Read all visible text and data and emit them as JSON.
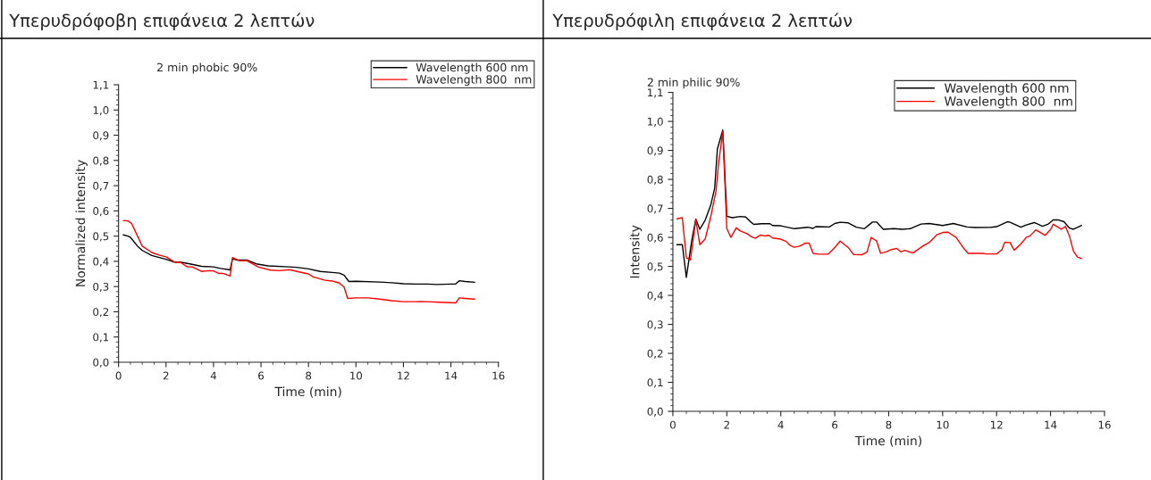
{
  "chart_data": [
    {
      "type": "line",
      "title": "Υπερυδρόφοβη επιφάνεια 2 λεπτών",
      "annotations": [
        "2 min phobic 90%"
      ],
      "xlabel": "Time (min)",
      "ylabel": "Normalized intensity",
      "xlim": [
        0,
        16
      ],
      "xticks": [
        0,
        2,
        4,
        6,
        8,
        10,
        12,
        14,
        16
      ],
      "ylim": [
        0,
        1.1
      ],
      "yticks": [
        {
          "value": 0,
          "label": "0,0"
        },
        {
          "value": 0.1,
          "label": "0,1"
        },
        {
          "value": 0.2,
          "label": "0,2"
        },
        {
          "value": 0.3,
          "label": "0,3"
        },
        {
          "value": 0.4,
          "label": "0,4"
        },
        {
          "value": 0.5,
          "label": "0,5"
        },
        {
          "value": 0.6,
          "label": "0,6"
        },
        {
          "value": 0.7,
          "label": "0,7"
        },
        {
          "value": 0.8,
          "label": "0,8"
        },
        {
          "value": 0.9,
          "label": "0,9"
        },
        {
          "value": 1.0,
          "label": "1,0"
        },
        {
          "value": 1.1,
          "label": "1,1"
        }
      ],
      "grid": false,
      "legend": "top right",
      "line_style": "solid",
      "marker": "none",
      "series": [
        {
          "name": "Wavelength 600 nm",
          "color": "#000000",
          "x": [
            0.2,
            0.4,
            0.5,
            0.8,
            1.0,
            1.4,
            2.0,
            2.3,
            2.6,
            3.0,
            3.5,
            4.0,
            4.3,
            4.7,
            4.8,
            5.0,
            5.4,
            5.8,
            6.3,
            7.0,
            7.5,
            8.0,
            8.5,
            9.0,
            9.3,
            9.5,
            9.7,
            10.0,
            11.0,
            11.5,
            12.0,
            12.5,
            13.0,
            13.4,
            14.0,
            14.2,
            14.35,
            14.6,
            15.0
          ],
          "values": [
            0.505,
            0.5,
            0.495,
            0.46,
            0.443,
            0.423,
            0.408,
            0.398,
            0.397,
            0.39,
            0.38,
            0.378,
            0.372,
            0.366,
            0.41,
            0.405,
            0.405,
            0.39,
            0.382,
            0.379,
            0.376,
            0.37,
            0.36,
            0.356,
            0.353,
            0.345,
            0.32,
            0.321,
            0.318,
            0.315,
            0.311,
            0.31,
            0.31,
            0.308,
            0.31,
            0.31,
            0.323,
            0.32,
            0.317
          ]
        },
        {
          "name": "Wavelength 800  nm",
          "color": "#ff0000",
          "x": [
            0.2,
            0.4,
            0.55,
            0.8,
            1.0,
            1.4,
            1.7,
            2.0,
            2.4,
            2.6,
            2.9,
            3.1,
            3.5,
            3.8,
            4.0,
            4.2,
            4.4,
            4.7,
            4.8,
            5.1,
            5.4,
            5.9,
            6.4,
            6.8,
            7.2,
            7.6,
            8.0,
            8.2,
            8.7,
            9.0,
            9.3,
            9.5,
            9.65,
            10.0,
            10.5,
            11.0,
            11.5,
            12.0,
            12.5,
            12.7,
            13.0,
            13.5,
            14.0,
            14.2,
            14.35,
            14.6,
            15.0
          ],
          "values": [
            0.562,
            0.56,
            0.55,
            0.5,
            0.46,
            0.435,
            0.425,
            0.418,
            0.395,
            0.396,
            0.378,
            0.378,
            0.36,
            0.363,
            0.362,
            0.353,
            0.352,
            0.342,
            0.415,
            0.402,
            0.403,
            0.377,
            0.365,
            0.363,
            0.367,
            0.358,
            0.35,
            0.338,
            0.325,
            0.322,
            0.314,
            0.298,
            0.253,
            0.255,
            0.255,
            0.25,
            0.244,
            0.24,
            0.24,
            0.241,
            0.24,
            0.238,
            0.236,
            0.235,
            0.255,
            0.253,
            0.25
          ]
        }
      ]
    },
    {
      "type": "line",
      "title": "Υπερυδρόφιλη επιφάνεια 2 λεπτών",
      "annotations": [
        "2 min philic 90%"
      ],
      "xlabel": "Time (min)",
      "ylabel": "Intensity",
      "xlim": [
        0,
        16
      ],
      "xticks": [
        0,
        2,
        4,
        6,
        8,
        10,
        12,
        14,
        16
      ],
      "ylim": [
        0,
        1.1
      ],
      "yticks": [
        {
          "value": 0,
          "label": "0,0"
        },
        {
          "value": 0.1,
          "label": "0,1"
        },
        {
          "value": 0.2,
          "label": "0,2"
        },
        {
          "value": 0.3,
          "label": "0,3"
        },
        {
          "value": 0.4,
          "label": "0,4"
        },
        {
          "value": 0.5,
          "label": "0,5"
        },
        {
          "value": 0.6,
          "label": "0,6"
        },
        {
          "value": 0.7,
          "label": "0,7"
        },
        {
          "value": 0.8,
          "label": "0,8"
        },
        {
          "value": 0.9,
          "label": "0,9"
        },
        {
          "value": 1.0,
          "label": "1,0"
        },
        {
          "value": 1.1,
          "label": "1,1"
        }
      ],
      "grid": false,
      "legend": "top right",
      "line_style": "solid",
      "marker": "none",
      "series": [
        {
          "name": "Wavelength 600 nm",
          "color": "#000000",
          "x": [
            0.15,
            0.35,
            0.5,
            0.7,
            0.85,
            1.0,
            1.2,
            1.4,
            1.55,
            1.65,
            1.85,
            2.0,
            2.2,
            2.5,
            2.7,
            2.9,
            3.0,
            3.3,
            3.6,
            3.7,
            4.0,
            4.5,
            5.0,
            5.2,
            5.3,
            5.8,
            6.0,
            6.2,
            6.5,
            6.8,
            7.1,
            7.4,
            7.55,
            7.8,
            8.2,
            8.5,
            8.8,
            9.2,
            9.5,
            10.0,
            10.4,
            10.9,
            11.2,
            11.8,
            12.0,
            12.4,
            12.5,
            12.9,
            13.1,
            13.4,
            13.7,
            13.9,
            14.1,
            14.3,
            14.5,
            14.7,
            14.85,
            15.15
          ],
          "values": [
            0.575,
            0.575,
            0.462,
            0.59,
            0.663,
            0.628,
            0.66,
            0.71,
            0.77,
            0.905,
            0.97,
            0.673,
            0.668,
            0.672,
            0.67,
            0.652,
            0.645,
            0.647,
            0.647,
            0.641,
            0.64,
            0.63,
            0.635,
            0.631,
            0.637,
            0.636,
            0.648,
            0.652,
            0.65,
            0.635,
            0.63,
            0.653,
            0.653,
            0.628,
            0.63,
            0.628,
            0.63,
            0.646,
            0.648,
            0.641,
            0.648,
            0.636,
            0.634,
            0.635,
            0.637,
            0.654,
            0.652,
            0.635,
            0.643,
            0.651,
            0.638,
            0.645,
            0.66,
            0.66,
            0.654,
            0.632,
            0.628,
            0.641
          ]
        },
        {
          "name": "Wavelength 800  nm",
          "color": "#ff0000",
          "x": [
            0.15,
            0.35,
            0.5,
            0.65,
            0.85,
            1.0,
            1.2,
            1.4,
            1.6,
            1.7,
            1.85,
            2.0,
            2.15,
            2.35,
            2.5,
            2.75,
            2.9,
            3.05,
            3.25,
            3.4,
            3.55,
            3.7,
            4.0,
            4.2,
            4.35,
            4.5,
            4.7,
            4.9,
            5.05,
            5.2,
            5.4,
            5.75,
            6.0,
            6.2,
            6.5,
            6.7,
            7.0,
            7.2,
            7.35,
            7.55,
            7.7,
            7.9,
            8.1,
            8.3,
            8.45,
            8.6,
            8.9,
            9.0,
            9.3,
            9.5,
            9.8,
            10.0,
            10.2,
            10.5,
            10.8,
            10.95,
            11.5,
            11.6,
            12.0,
            12.2,
            12.3,
            12.5,
            12.65,
            12.9,
            13.1,
            13.25,
            13.45,
            13.6,
            13.8,
            14.0,
            14.1,
            14.4,
            14.55,
            14.7,
            14.85,
            15.0,
            15.15
          ],
          "values": [
            0.664,
            0.668,
            0.53,
            0.522,
            0.66,
            0.575,
            0.595,
            0.67,
            0.76,
            0.86,
            0.965,
            0.63,
            0.6,
            0.633,
            0.622,
            0.613,
            0.603,
            0.597,
            0.608,
            0.605,
            0.607,
            0.598,
            0.594,
            0.586,
            0.572,
            0.566,
            0.57,
            0.58,
            0.58,
            0.545,
            0.542,
            0.542,
            0.565,
            0.587,
            0.565,
            0.541,
            0.54,
            0.55,
            0.6,
            0.588,
            0.545,
            0.55,
            0.558,
            0.562,
            0.55,
            0.555,
            0.546,
            0.553,
            0.572,
            0.582,
            0.61,
            0.617,
            0.618,
            0.6,
            0.56,
            0.545,
            0.545,
            0.543,
            0.543,
            0.558,
            0.583,
            0.582,
            0.556,
            0.577,
            0.6,
            0.606,
            0.626,
            0.618,
            0.607,
            0.627,
            0.645,
            0.628,
            0.638,
            0.605,
            0.552,
            0.532,
            0.527
          ]
        }
      ]
    }
  ]
}
